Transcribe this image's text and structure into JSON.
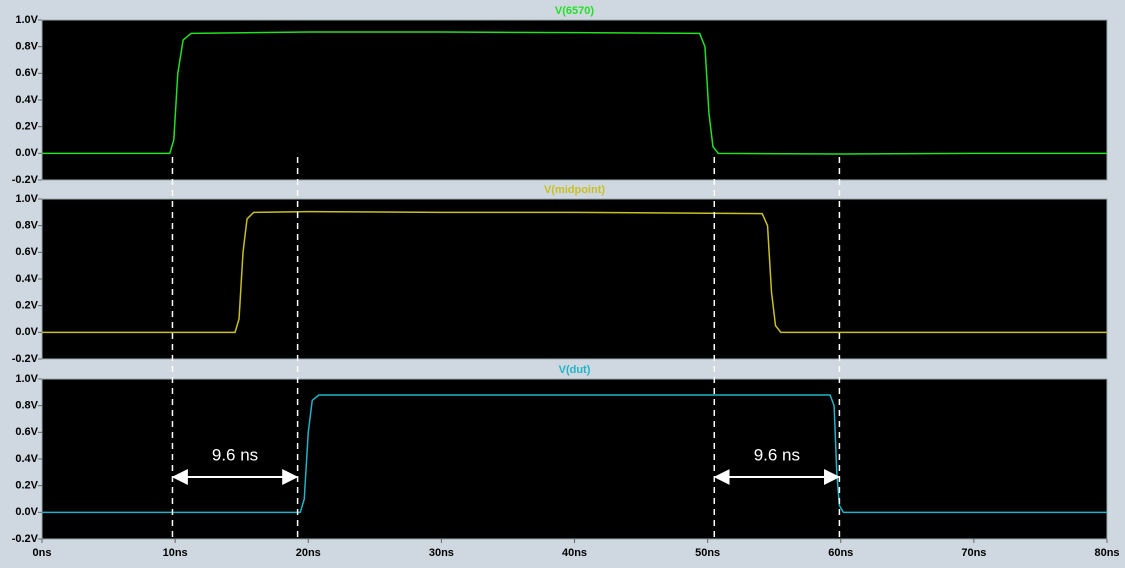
{
  "chart_data": [
    {
      "type": "line",
      "title": "V(6570)",
      "color": "#22e022",
      "x": [
        0,
        9.6,
        9.9,
        10.2,
        10.6,
        11.2,
        20,
        30,
        40,
        49.4,
        49.8,
        50.1,
        50.4,
        50.8,
        60,
        70,
        80
      ],
      "values": [
        0,
        0,
        0.1,
        0.6,
        0.85,
        0.9,
        0.91,
        0.91,
        0.905,
        0.9,
        0.8,
        0.3,
        0.05,
        0,
        -0.005,
        0,
        0
      ],
      "xlim": [
        0,
        80
      ],
      "ylim": [
        -0.2,
        1.0
      ],
      "yticks": [
        {
          "value": -0.2,
          "label": "-0.2V"
        },
        {
          "value": 0,
          "label": "0.0V"
        },
        {
          "value": 0.2,
          "label": "0.2V"
        },
        {
          "value": 0.4,
          "label": "0.4V"
        },
        {
          "value": 0.6,
          "label": "0.6V"
        },
        {
          "value": 0.8,
          "label": "0.8V"
        },
        {
          "value": 1.0,
          "label": "1.0V"
        }
      ]
    },
    {
      "type": "line",
      "title": "V(midpoint)",
      "color": "#c8c020",
      "x": [
        0,
        14.5,
        14.8,
        15.1,
        15.4,
        15.9,
        20,
        30,
        40,
        54.1,
        54.5,
        54.8,
        55.1,
        55.5,
        60,
        70,
        80
      ],
      "values": [
        0,
        0,
        0.1,
        0.6,
        0.85,
        0.9,
        0.905,
        0.9,
        0.9,
        0.89,
        0.8,
        0.3,
        0.05,
        0,
        0,
        0,
        0
      ],
      "xlim": [
        0,
        80
      ],
      "ylim": [
        -0.2,
        1.0
      ],
      "yticks": [
        {
          "value": -0.2,
          "label": "-0.2V"
        },
        {
          "value": 0,
          "label": "0.0V"
        },
        {
          "value": 0.2,
          "label": "0.2V"
        },
        {
          "value": 0.4,
          "label": "0.4V"
        },
        {
          "value": 0.6,
          "label": "0.6V"
        },
        {
          "value": 0.8,
          "label": "0.8V"
        },
        {
          "value": 1.0,
          "label": "1.0V"
        }
      ]
    },
    {
      "type": "line",
      "title": "V(dut)",
      "color": "#20b4c8",
      "x": [
        0,
        19.4,
        19.7,
        20,
        20.3,
        20.8,
        30,
        40,
        50,
        59.2,
        59.5,
        59.7,
        59.9,
        60.2,
        70,
        80
      ],
      "values": [
        0,
        0,
        0.1,
        0.6,
        0.84,
        0.88,
        0.88,
        0.88,
        0.88,
        0.88,
        0.8,
        0.3,
        0.05,
        0,
        0,
        0
      ],
      "xlim": [
        0,
        80
      ],
      "ylim": [
        -0.2,
        1.0
      ],
      "yticks": [
        {
          "value": -0.2,
          "label": "-0.2V"
        },
        {
          "value": 0,
          "label": "0.0V"
        },
        {
          "value": 0.2,
          "label": "0.2V"
        },
        {
          "value": 0.4,
          "label": "0.4V"
        },
        {
          "value": 0.6,
          "label": "0.6V"
        },
        {
          "value": 0.8,
          "label": "0.8V"
        },
        {
          "value": 1.0,
          "label": "1.0V"
        }
      ],
      "xticks": [
        {
          "value": 0,
          "label": "0ns"
        },
        {
          "value": 10,
          "label": "10ns"
        },
        {
          "value": 20,
          "label": "20ns"
        },
        {
          "value": 30,
          "label": "30ns"
        },
        {
          "value": 40,
          "label": "40ns"
        },
        {
          "value": 50,
          "label": "50ns"
        },
        {
          "value": 60,
          "label": "60ns"
        },
        {
          "value": 70,
          "label": "70ns"
        },
        {
          "value": 80,
          "label": "80ns"
        }
      ],
      "annotations": [
        {
          "x1": 9.8,
          "x2": 19.2,
          "label": "9.6 ns"
        },
        {
          "x1": 50.5,
          "x2": 59.9,
          "label": "9.6 ns"
        }
      ]
    }
  ]
}
